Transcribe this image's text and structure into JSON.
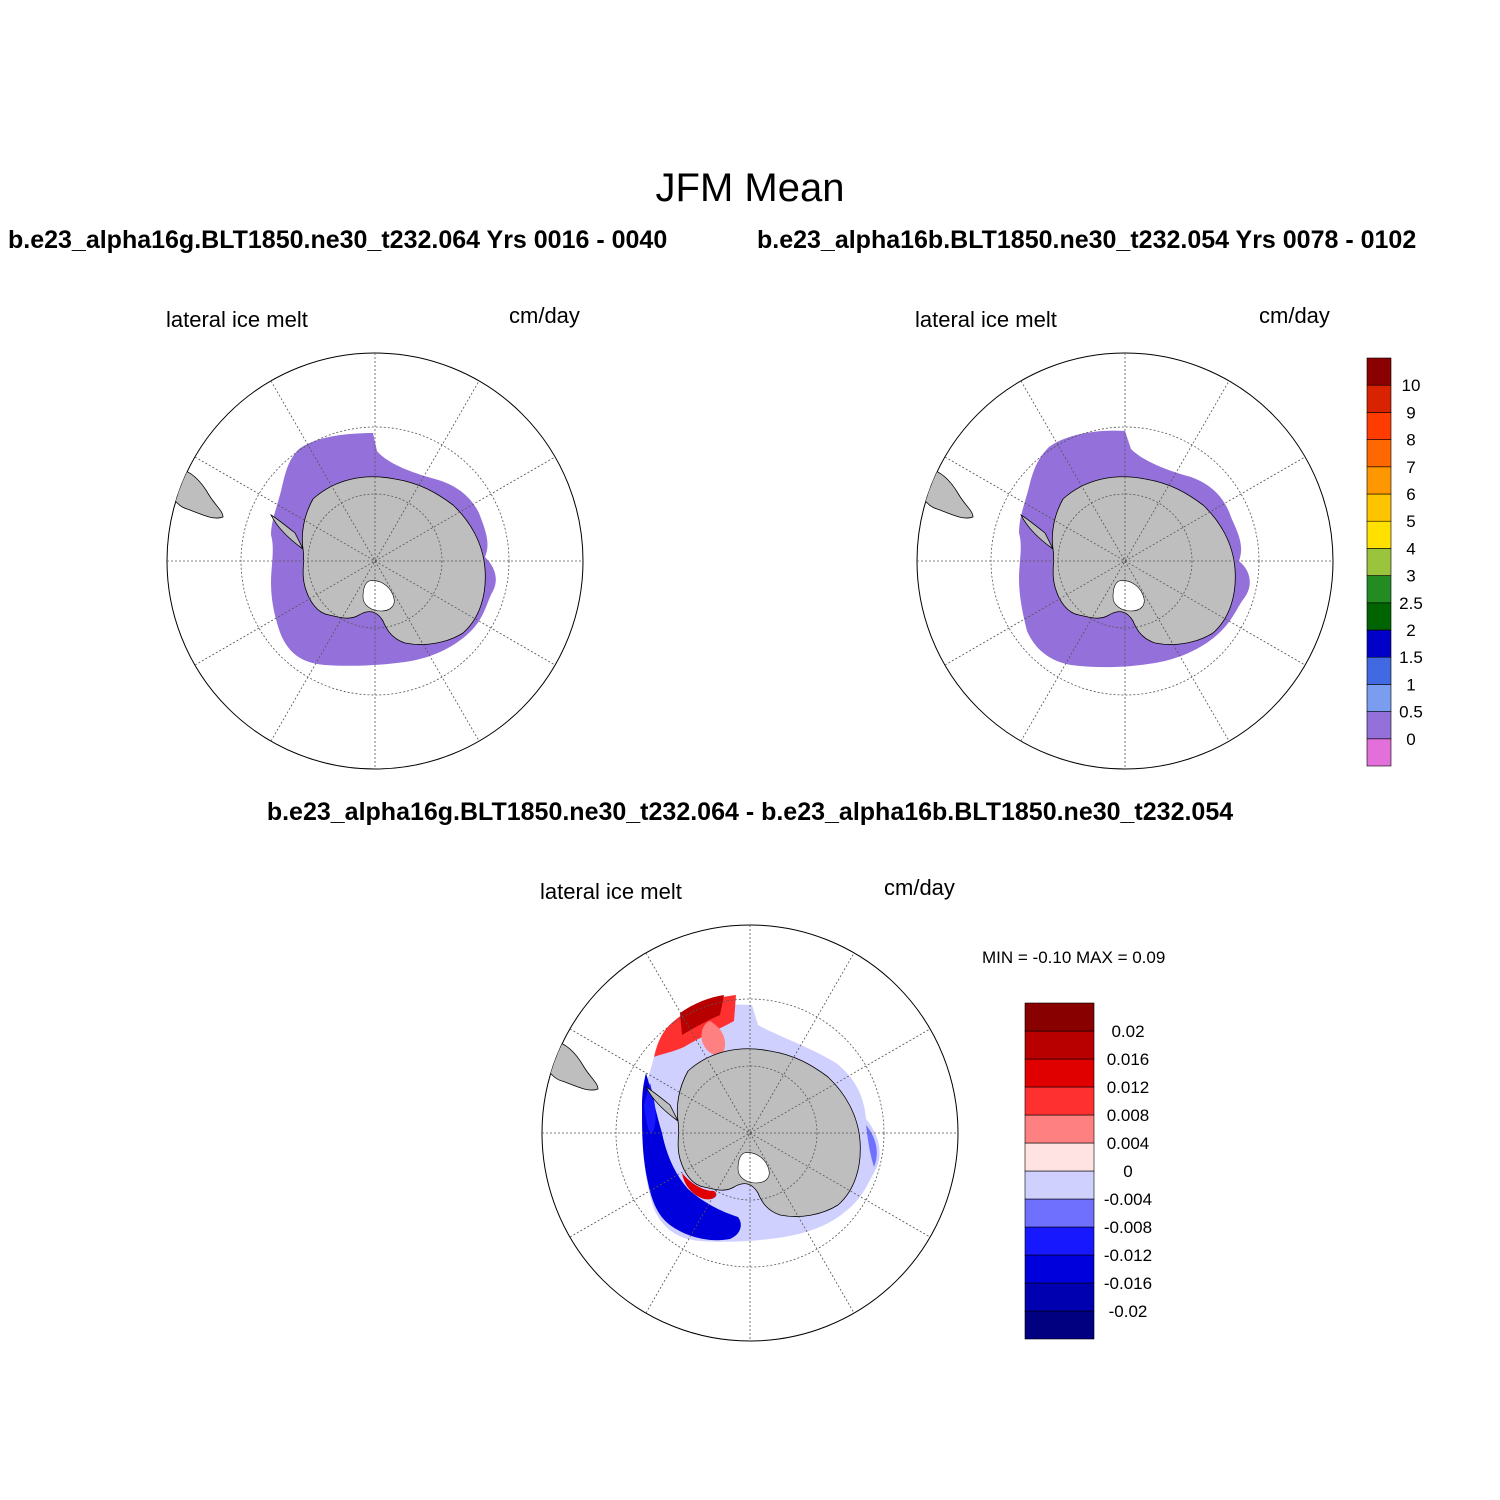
{
  "title": "JFM Mean",
  "panels": [
    {
      "case": "b.e23_alpha16g.BLT1850.ne30_t232.064  Yrs 0016 - 0040",
      "field": "lateral ice melt",
      "units": "cm/day"
    },
    {
      "case": "b.e23_alpha16b.BLT1850.ne30_t232.054  Yrs 0078 - 0102",
      "field": "lateral ice melt",
      "units": "cm/day"
    }
  ],
  "difference": {
    "title": "b.e23_alpha16g.BLT1850.ne30_t232.064 - b.e23_alpha16b.BLT1850.ne30_t232.054",
    "field": "lateral ice melt",
    "units": "cm/day",
    "minmax": "MIN =  -0.10 MAX =   0.09"
  },
  "colorbar_main": {
    "labels": [
      "0",
      "0.5",
      "1",
      "1.5",
      "2",
      "2.5",
      "3",
      "4",
      "5",
      "6",
      "7",
      "8",
      "9",
      "10"
    ],
    "colors": [
      "#e36fdb",
      "#9471da",
      "#7b9df0",
      "#4169e1",
      "#0000c8",
      "#006400",
      "#228b22",
      "#9ac43c",
      "#ffe000",
      "#ffc400",
      "#ff9800",
      "#ff6800",
      "#ff3c00",
      "#d92200",
      "#8b0000"
    ]
  },
  "colorbar_diff": {
    "labels": [
      "-0.02",
      "-0.016",
      "-0.012",
      "-0.008",
      "-0.004",
      "0",
      "0.004",
      "0.008",
      "0.012",
      "0.016",
      "0.02"
    ],
    "colors": [
      "#000080",
      "#0000b0",
      "#0000dc",
      "#1818ff",
      "#7070ff",
      "#d0d0ff",
      "#ffe2e2",
      "#ff8080",
      "#ff3030",
      "#e00000",
      "#b80000",
      "#880000"
    ]
  },
  "map_colors": {
    "land": "#bebebe",
    "ice_melt": "#9471da",
    "ocean": "#ffffff"
  }
}
